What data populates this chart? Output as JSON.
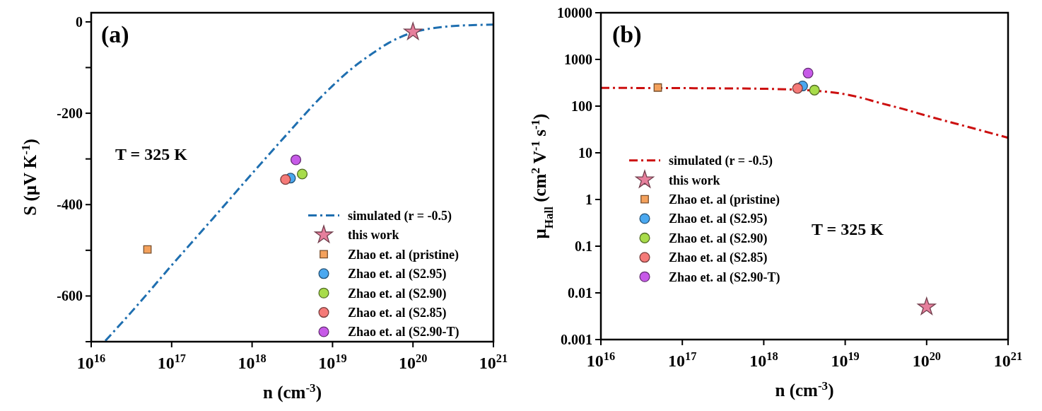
{
  "chart_data": [
    {
      "type": "scatter",
      "title": "(a)",
      "xlabel": "n (cm$^{-3}$)",
      "ylabel": "S (μV K$^{-1}$)",
      "annotations": [
        "T = 325 K"
      ],
      "log": "x",
      "xlim": [
        1e+16,
        1e+21
      ],
      "xticks": [
        {
          "value": 1e+16,
          "label": "10$^{16}$"
        },
        {
          "value": 1e+17,
          "label": "10$^{17}$"
        },
        {
          "value": 1e+18,
          "label": "10$^{18}$"
        },
        {
          "value": 1e+19,
          "label": "10$^{19}$"
        },
        {
          "value": 1e+20,
          "label": "10$^{20}$"
        },
        {
          "value": 1e+21,
          "label": "10$^{21}$"
        }
      ],
      "ylim": [
        -700,
        20
      ],
      "yticks": [
        0,
        {
          "value": -100,
          "label": null
        },
        -200,
        {
          "value": -300,
          "label": null
        },
        -400,
        {
          "value": -500,
          "label": null
        },
        -600,
        {
          "value": -700,
          "label": null
        }
      ],
      "grid": false,
      "legend": "bottom right",
      "series": [
        {
          "name": "simulated (r = -0.5)",
          "type": "line",
          "color": "#1f6fb0",
          "line_style": "dashed",
          "marker": "none",
          "x": [
            1.5e+16,
            3.2e+16,
            1e+17,
            3.2e+17,
            1e+18,
            3.2e+18,
            6.3e+18,
            1e+19,
            1.8e+19,
            3.2e+19,
            5e+19,
            1e+20,
            1.6e+20,
            3.2e+20,
            1e+21
          ],
          "values": [
            -698,
            -634,
            -533,
            -432,
            -332,
            -232,
            -175,
            -140,
            -100,
            -68,
            -46,
            -23,
            -15,
            -9,
            -6
          ]
        },
        {
          "name": "this work",
          "color": "#e67f9c",
          "marker": "star",
          "x": [
            1e+20
          ],
          "values": [
            -22
          ]
        },
        {
          "name": "Zhao et. al (pristine)",
          "color": "#f4a15c",
          "marker": "square",
          "x": [
            5e+16
          ],
          "values": [
            -498
          ]
        },
        {
          "name": "Zhao et. al (S2.95)",
          "color": "#4aa8f0",
          "marker": "circle",
          "x": [
            3e+18
          ],
          "values": [
            -342
          ]
        },
        {
          "name": "Zhao et. al (S2.90)",
          "color": "#a8dc4a",
          "marker": "circle",
          "x": [
            4.2e+18
          ],
          "values": [
            -333
          ]
        },
        {
          "name": "Zhao et. al (S2.85)",
          "color": "#f57a78",
          "marker": "circle",
          "x": [
            2.6e+18
          ],
          "values": [
            -345
          ]
        },
        {
          "name": "Zhao et. al (S2.90-T)",
          "color": "#c75ae8",
          "marker": "circle",
          "x": [
            3.5e+18
          ],
          "values": [
            -302
          ]
        }
      ]
    },
    {
      "type": "scatter",
      "title": "(b)",
      "xlabel": "n (cm$^{-3}$)",
      "ylabel": "μ$_{Hall}$ (cm$^{2}$ V$^{-1}$ s$^{-1}$)",
      "annotations": [
        "T = 325 K"
      ],
      "log": "xy",
      "xlim": [
        1e+16,
        1e+21
      ],
      "xticks": [
        {
          "value": 1e+16,
          "label": "10$^{16}$"
        },
        {
          "value": 1e+17,
          "label": "10$^{17}$"
        },
        {
          "value": 1e+18,
          "label": "10$^{18}$"
        },
        {
          "value": 1e+19,
          "label": "10$^{19}$"
        },
        {
          "value": 1e+20,
          "label": "10$^{20}$"
        },
        {
          "value": 1e+21,
          "label": "10$^{21}$"
        }
      ],
      "ylim": [
        0.001,
        10000
      ],
      "yticks": [
        0.001,
        0.01,
        0.1,
        1,
        10,
        100,
        1000,
        10000
      ],
      "grid": false,
      "legend": "left",
      "series": [
        {
          "name": "simulated (r = -0.5)",
          "type": "line",
          "color": "#cc1010",
          "line_style": "dashed",
          "marker": "none",
          "x": [
            1e+16,
            1e+17,
            3.2e+17,
            1e+18,
            2e+18,
            4e+18,
            8.5e+18,
            1.6e+19,
            2.4e+19,
            5e+19,
            1.2e+20,
            3.2e+20,
            1e+21
          ],
          "values": [
            245,
            243,
            240,
            235,
            228,
            215,
            188,
            150,
            123,
            88,
            57,
            36,
            21
          ]
        },
        {
          "name": "this work",
          "color": "#e67f9c",
          "marker": "star",
          "x": [
            1e+20
          ],
          "values": [
            0.005
          ]
        },
        {
          "name": "Zhao et. al (pristine)",
          "color": "#f4a15c",
          "marker": "square",
          "x": [
            5e+16
          ],
          "values": [
            250
          ]
        },
        {
          "name": "Zhao et. al (S2.95)",
          "color": "#4aa8f0",
          "marker": "circle",
          "x": [
            3e+18
          ],
          "values": [
            270
          ]
        },
        {
          "name": "Zhao et. al (S2.90)",
          "color": "#a8dc4a",
          "marker": "circle",
          "x": [
            4.2e+18
          ],
          "values": [
            220
          ]
        },
        {
          "name": "Zhao et. al (S2.85)",
          "color": "#f57a78",
          "marker": "circle",
          "x": [
            2.6e+18
          ],
          "values": [
            240
          ]
        },
        {
          "name": "Zhao et. al (S2.90-T)",
          "color": "#c75ae8",
          "marker": "circle",
          "x": [
            3.5e+18
          ],
          "values": [
            510
          ]
        }
      ]
    }
  ]
}
